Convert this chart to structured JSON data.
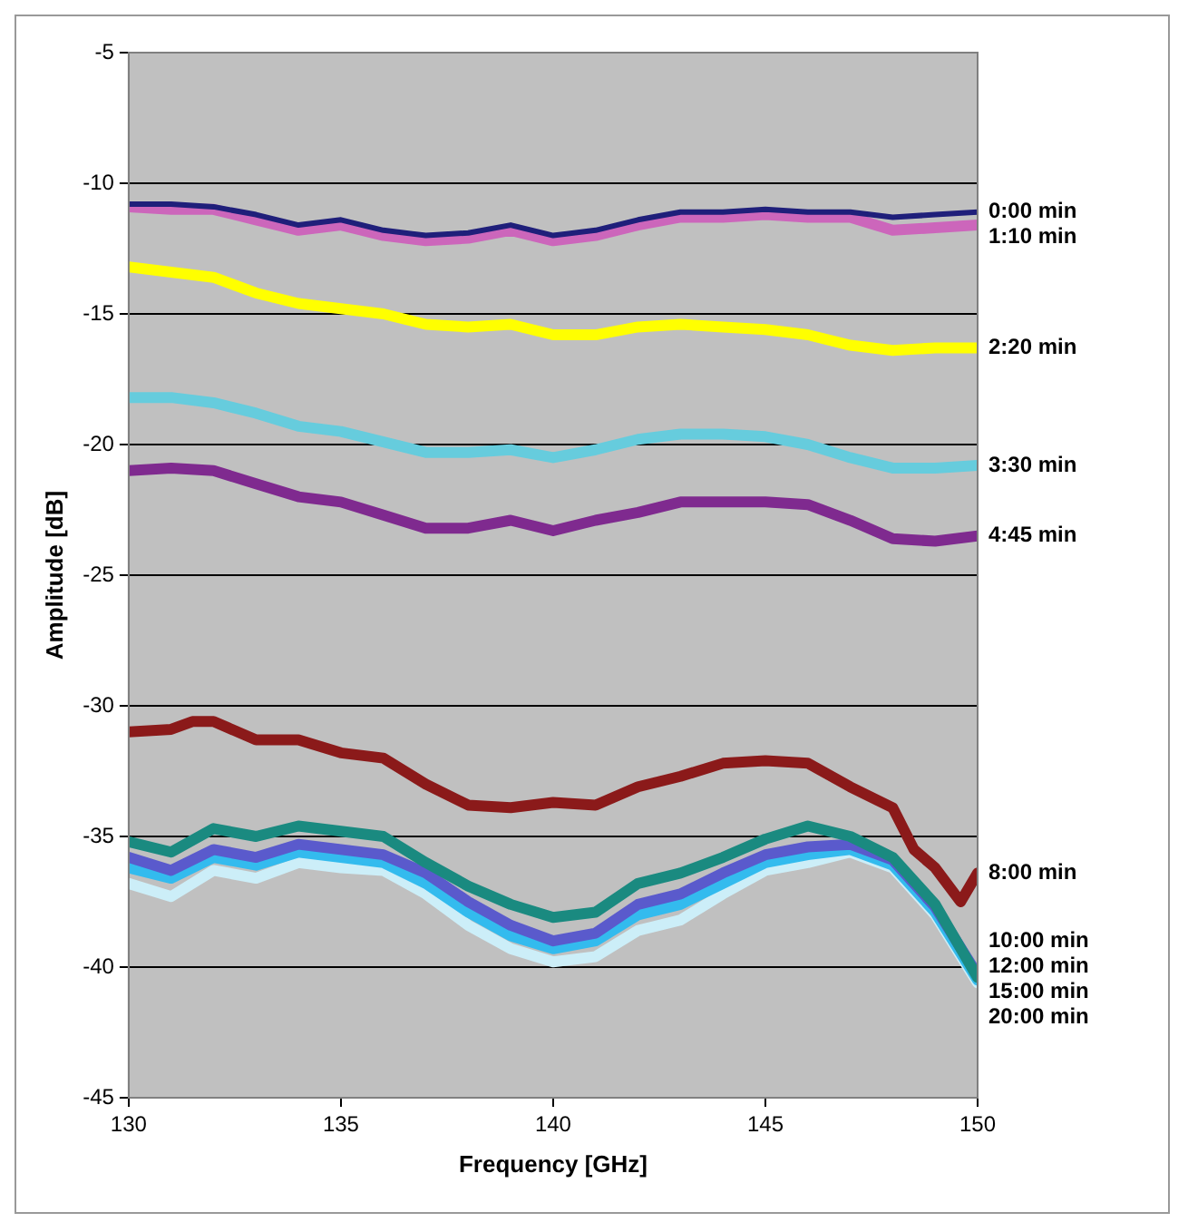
{
  "chart_data": {
    "type": "line",
    "xlabel": "Frequency [GHz]",
    "ylabel": "Amplitude [dB]",
    "x": [
      130,
      131,
      132,
      133,
      134,
      135,
      136,
      137,
      138,
      139,
      140,
      141,
      142,
      143,
      144,
      145,
      146,
      147,
      148,
      149,
      150
    ],
    "xlim": [
      130,
      150
    ],
    "xticks": [
      130,
      135,
      140,
      145,
      150
    ],
    "ylim": [
      -45,
      -5
    ],
    "yticks": [
      -45,
      -40,
      -35,
      -30,
      -25,
      -20,
      -15,
      -10,
      -5
    ],
    "grid": "y",
    "legend": false,
    "marker": "none",
    "line_style": "solid",
    "series": [
      {
        "name": "0:00 min",
        "color": "#1f1f7a",
        "values": [
          -10.8,
          -10.8,
          -10.9,
          -11.2,
          -11.6,
          -11.4,
          -11.8,
          -12.0,
          -11.9,
          -11.6,
          -12.0,
          -11.8,
          -11.4,
          -11.1,
          -11.1,
          -11.0,
          -11.1,
          -11.1,
          -11.3,
          -11.2,
          -11.1
        ]
      },
      {
        "name": "1:10 min",
        "color": "#cc66bb",
        "values": [
          -10.9,
          -11.0,
          -11.0,
          -11.4,
          -11.8,
          -11.6,
          -12.0,
          -12.2,
          -12.1,
          -11.8,
          -12.2,
          -12.0,
          -11.6,
          -11.3,
          -11.3,
          -11.2,
          -11.3,
          -11.3,
          -11.8,
          -11.7,
          -11.6
        ]
      },
      {
        "name": "2:20 min",
        "color": "#ffff00",
        "values": [
          -13.2,
          -13.4,
          -13.6,
          -14.2,
          -14.6,
          -14.8,
          -15.0,
          -15.4,
          -15.5,
          -15.4,
          -15.8,
          -15.8,
          -15.5,
          -15.4,
          -15.5,
          -15.6,
          -15.8,
          -16.2,
          -16.4,
          -16.3,
          -16.3
        ]
      },
      {
        "name": "3:30 min",
        "color": "#66ccdd",
        "values": [
          -18.2,
          -18.2,
          -18.4,
          -18.8,
          -19.3,
          -19.5,
          -19.9,
          -20.3,
          -20.3,
          -20.2,
          -20.5,
          -20.2,
          -19.8,
          -19.6,
          -19.6,
          -19.7,
          -20.0,
          -20.5,
          -20.9,
          -20.9,
          -20.8
        ]
      },
      {
        "name": "4:45 min",
        "color": "#7f2a8f",
        "values": [
          -21.0,
          -20.9,
          -21.0,
          -21.5,
          -22.0,
          -22.2,
          -22.7,
          -23.2,
          -23.2,
          -22.9,
          -23.3,
          -22.9,
          -22.6,
          -22.2,
          -22.2,
          -22.2,
          -22.3,
          -22.9,
          -23.6,
          -23.7,
          -23.5
        ]
      },
      {
        "name": "8:00 min",
        "color": "#8b1a1a",
        "x": [
          130,
          131,
          131.5,
          132,
          133,
          134,
          135,
          136,
          137,
          138,
          139,
          140,
          141,
          142,
          143,
          144,
          145,
          146,
          147,
          148,
          148.5,
          149,
          149.6,
          150
        ],
        "values": [
          -31.0,
          -30.9,
          -30.6,
          -30.6,
          -31.3,
          -31.3,
          -31.8,
          -32.0,
          -33.0,
          -33.8,
          -33.9,
          -33.7,
          -33.8,
          -33.1,
          -32.7,
          -32.2,
          -32.1,
          -32.2,
          -33.1,
          -33.9,
          -35.5,
          -36.2,
          -37.5,
          -36.4
        ]
      },
      {
        "name": "10:00 min",
        "color": "#1a8a80",
        "values": [
          -35.2,
          -35.6,
          -34.7,
          -35.0,
          -34.6,
          -34.8,
          -35.0,
          -36.0,
          -36.9,
          -37.6,
          -38.1,
          -37.9,
          -36.8,
          -36.4,
          -35.8,
          -35.1,
          -34.6,
          -35.0,
          -35.8,
          -37.6,
          -40.4
        ]
      },
      {
        "name": "12:00 min",
        "color": "#5a5acc",
        "values": [
          -35.8,
          -36.3,
          -35.5,
          -35.8,
          -35.3,
          -35.5,
          -35.7,
          -36.4,
          -37.5,
          -38.4,
          -39.0,
          -38.7,
          -37.6,
          -37.2,
          -36.4,
          -35.7,
          -35.4,
          -35.3,
          -35.9,
          -37.7,
          -40.3
        ]
      },
      {
        "name": "15:00 min",
        "color": "#33bbee",
        "values": [
          -36.2,
          -36.6,
          -35.8,
          -36.1,
          -35.6,
          -35.8,
          -36.0,
          -36.8,
          -37.9,
          -38.8,
          -39.3,
          -39.0,
          -38.0,
          -37.6,
          -36.8,
          -36.0,
          -35.7,
          -35.5,
          -36.1,
          -37.9,
          -40.5
        ]
      },
      {
        "name": "20:00 min",
        "color": "#cceef8",
        "values": [
          -36.8,
          -37.3,
          -36.3,
          -36.6,
          -36.0,
          -36.2,
          -36.3,
          -37.2,
          -38.4,
          -39.3,
          -39.8,
          -39.6,
          -38.6,
          -38.2,
          -37.2,
          -36.3,
          -36.0,
          -35.6,
          -36.2,
          -38.0,
          -40.6
        ]
      }
    ]
  }
}
